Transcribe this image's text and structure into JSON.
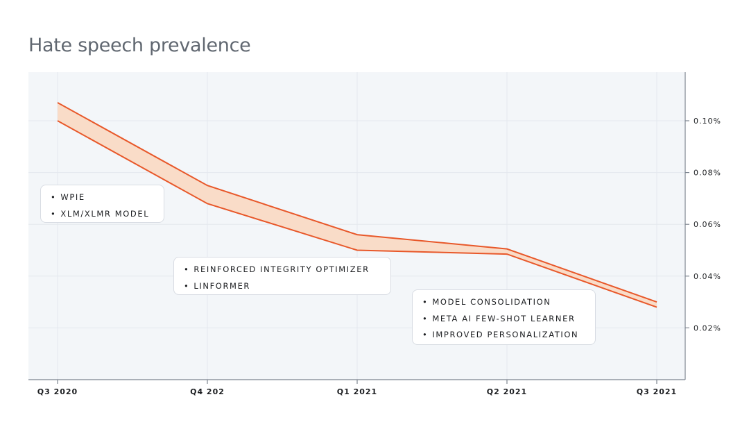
{
  "chart_data": {
    "type": "area",
    "title": "Hate speech prevalence",
    "categories": [
      "Q3 2020",
      "Q4 202",
      "Q1 2021",
      "Q2 2021",
      "Q3 2021"
    ],
    "series": [
      {
        "values": [
          0.107,
          0.075,
          0.056,
          0.0505,
          0.03
        ]
      },
      {
        "values": [
          0.1,
          0.068,
          0.05,
          0.0485,
          0.028
        ]
      }
    ],
    "y_ticks": [
      "0.10%",
      "0.08%",
      "0.06%",
      "0.04%",
      "0.02%"
    ],
    "y_tick_values": [
      0.1,
      0.08,
      0.06,
      0.04,
      0.02
    ],
    "ylim": [
      0,
      0.12
    ],
    "yaxis_position": "right",
    "grid": true,
    "colors": {
      "line": "#e8582a",
      "fill": "#f9dcc8",
      "plot_bg": "#f3f6f9",
      "grid": "#e4e8ee",
      "axis": "#7d8590"
    },
    "annotations": [
      {
        "items": [
          "WPIE",
          "XLM/XLMR MODEL"
        ]
      },
      {
        "items": [
          "REINFORCED INTEGRITY OPTIMIZER",
          "LINFORMER"
        ]
      },
      {
        "items": [
          "MODEL CONSOLIDATION",
          "META AI FEW-SHOT LEARNER",
          "IMPROVED PERSONALIZATION"
        ]
      }
    ],
    "bullet": "•"
  }
}
